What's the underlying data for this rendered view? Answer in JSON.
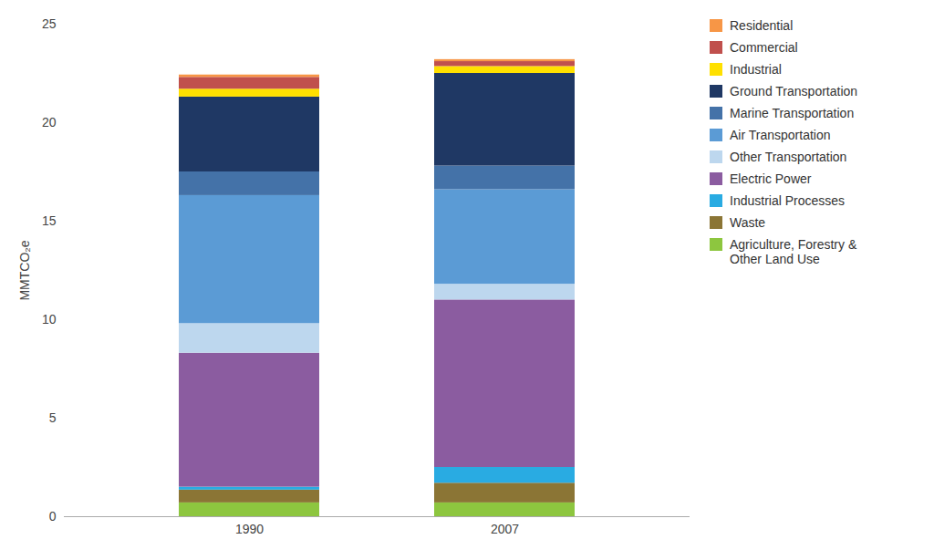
{
  "chart_data": {
    "type": "bar",
    "stacked": true,
    "categories": [
      "1990",
      "2007"
    ],
    "series": [
      {
        "name": "Agriculture, Forestry &\nOther Land Use",
        "color": "#8DC63F",
        "values": [
          0.7,
          0.7
        ]
      },
      {
        "name": "Waste",
        "color": "#8B7535",
        "values": [
          0.65,
          1.0
        ]
      },
      {
        "name": "Industrial Processes",
        "color": "#29ABE2",
        "values": [
          0.15,
          0.8
        ]
      },
      {
        "name": "Electric Power",
        "color": "#8B5CA0",
        "values": [
          6.8,
          8.5
        ]
      },
      {
        "name": "Other Transportation",
        "color": "#BDD7EE",
        "values": [
          1.5,
          0.8
        ]
      },
      {
        "name": "Air Transportation",
        "color": "#5B9BD5",
        "values": [
          6.5,
          4.8
        ]
      },
      {
        "name": "Marine Transportation",
        "color": "#4472A8",
        "values": [
          1.2,
          1.2
        ]
      },
      {
        "name": "Ground Transportation",
        "color": "#1F3864",
        "values": [
          3.8,
          4.7
        ]
      },
      {
        "name": "Industrial",
        "color": "#FFE000",
        "values": [
          0.4,
          0.35
        ]
      },
      {
        "name": "Commercial",
        "color": "#C0504D",
        "values": [
          0.6,
          0.25
        ]
      },
      {
        "name": "Residential",
        "color": "#F79646",
        "values": [
          0.12,
          0.1
        ]
      }
    ],
    "ylabel": "MMTCO₂e",
    "ylim": [
      0,
      25
    ],
    "yticks": [
      0,
      5,
      10,
      15,
      20,
      25
    ],
    "grid": false,
    "legend": "right"
  }
}
